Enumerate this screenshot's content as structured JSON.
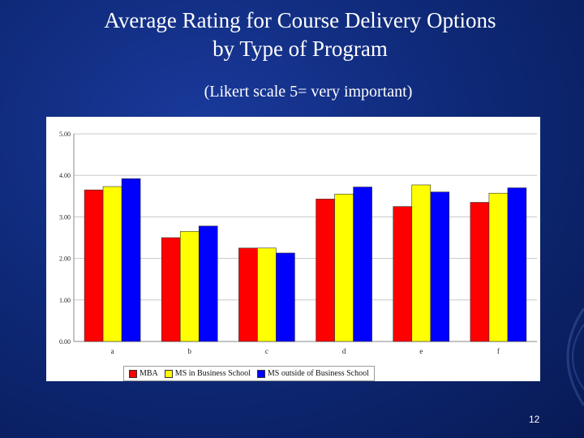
{
  "slide": {
    "title_line1": "Average Rating for Course Delivery Options",
    "title_line2": "by Type of Program",
    "subtitle": "(Likert scale 5= very important)",
    "page_number": "12"
  },
  "chart_data": {
    "type": "bar",
    "categories": [
      "a",
      "b",
      "c",
      "d",
      "e",
      "f"
    ],
    "series": [
      {
        "name": "MBA",
        "color": "#ff0000",
        "values": [
          3.65,
          2.5,
          2.25,
          3.43,
          3.25,
          3.35
        ]
      },
      {
        "name": "MS in Business School",
        "color": "#ffff00",
        "values": [
          3.73,
          2.65,
          2.25,
          3.55,
          3.77,
          3.57
        ]
      },
      {
        "name": "MS outside of Business School",
        "color": "#0000ff",
        "values": [
          3.92,
          2.78,
          2.13,
          3.72,
          3.6,
          3.7
        ]
      }
    ],
    "ylim": [
      0,
      5
    ],
    "yticks": [
      "0.00",
      "1.00",
      "2.00",
      "3.00",
      "4.00",
      "5.00"
    ],
    "grid": true,
    "legend": "bottom",
    "title": "",
    "xlabel": "",
    "ylabel": ""
  }
}
